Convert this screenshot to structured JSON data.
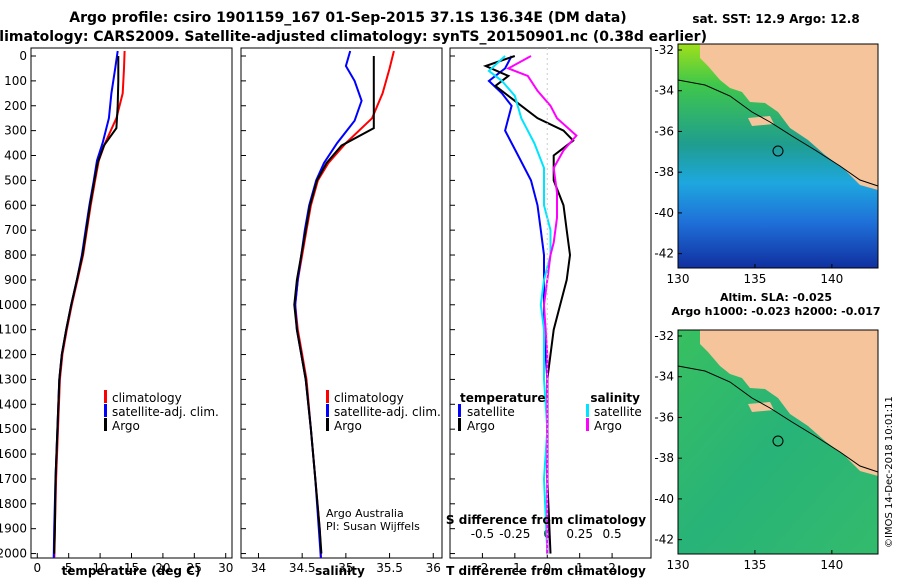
{
  "header": {
    "title_line1": "Argo profile: csiro 1901159_167 01-Sep-2015 37.1S 136.34E (DM data)",
    "title_line2": "Climatology: CARS2009. Satellite-adjusted climatology: synTS_20150901.nc (0.38d earlier)"
  },
  "colors": {
    "climatology": "#ff0000",
    "satellite": "#0000ff",
    "argo": "#000000",
    "sal_satellite": "#00e5ff",
    "sal_argo": "#ff00ff",
    "land": "#f5c49a"
  },
  "chart_data": [
    {
      "type": "line",
      "xlabel": "temperature (deg C)",
      "xlim": [
        -1,
        31
      ],
      "xticks": [
        "0",
        "5",
        "10",
        "15",
        "20",
        "25",
        "30"
      ],
      "ylim": [
        2050,
        0
      ],
      "yticks": [
        "0",
        "100",
        "200",
        "300",
        "400",
        "500",
        "600",
        "700",
        "800",
        "900",
        "1000",
        "1100",
        "1200",
        "1300",
        "1400",
        "1500",
        "1600",
        "1700",
        "1800",
        "1900",
        "2000"
      ],
      "legend": [
        "climatology",
        "satellite-adj. clim.",
        "Argo"
      ],
      "series": [
        {
          "name": "climatology",
          "points": [
            [
              13.9,
              -20
            ],
            [
              13.8,
              50
            ],
            [
              13.6,
              150
            ],
            [
              12.6,
              250
            ],
            [
              10.8,
              350
            ],
            [
              9.8,
              420
            ],
            [
              9.2,
              500
            ],
            [
              8.5,
              600
            ],
            [
              7.9,
              700
            ],
            [
              7.3,
              800
            ],
            [
              6.4,
              900
            ],
            [
              5.5,
              1000
            ],
            [
              4.7,
              1100
            ],
            [
              4.0,
              1200
            ],
            [
              3.6,
              1300
            ],
            [
              3.3,
              1500
            ],
            [
              3.0,
              1700
            ],
            [
              2.8,
              1900
            ],
            [
              2.7,
              2050
            ]
          ]
        },
        {
          "name": "satellite-adj. clim.",
          "points": [
            [
              12.8,
              -20
            ],
            [
              12.4,
              50
            ],
            [
              11.8,
              150
            ],
            [
              11.4,
              250
            ],
            [
              10.4,
              350
            ],
            [
              9.5,
              420
            ],
            [
              9.0,
              500
            ],
            [
              8.3,
              600
            ],
            [
              7.7,
              700
            ],
            [
              7.1,
              800
            ],
            [
              6.3,
              900
            ],
            [
              5.4,
              1000
            ],
            [
              4.6,
              1100
            ],
            [
              3.9,
              1200
            ],
            [
              3.5,
              1300
            ],
            [
              3.2,
              1500
            ],
            [
              2.9,
              1700
            ],
            [
              2.7,
              1900
            ],
            [
              2.6,
              2050
            ]
          ]
        },
        {
          "name": "Argo",
          "points": [
            [
              12.9,
              0
            ],
            [
              12.9,
              100
            ],
            [
              12.8,
              200
            ],
            [
              12.6,
              290
            ],
            [
              10.6,
              360
            ],
            [
              9.6,
              430
            ],
            [
              9.1,
              500
            ],
            [
              8.4,
              600
            ],
            [
              7.8,
              700
            ],
            [
              7.2,
              800
            ],
            [
              6.3,
              900
            ],
            [
              5.4,
              1000
            ],
            [
              4.6,
              1100
            ],
            [
              3.9,
              1200
            ],
            [
              3.5,
              1300
            ],
            [
              3.2,
              1500
            ],
            [
              2.9,
              1700
            ],
            [
              2.8,
              1900
            ],
            [
              2.7,
              2000
            ]
          ]
        }
      ]
    },
    {
      "type": "line",
      "xlabel": "salinity",
      "xlim": [
        33.8,
        36.1
      ],
      "xticks": [
        "34",
        "34.5",
        "35",
        "35.5",
        "36"
      ],
      "ylim": [
        2050,
        0
      ],
      "legend": [
        "climatology",
        "satellite-adj. clim.",
        "Argo"
      ],
      "annotation": [
        "Argo Australia",
        "PI: Susan Wijffels"
      ],
      "series": [
        {
          "name": "climatology",
          "points": [
            [
              35.55,
              -20
            ],
            [
              35.5,
              50
            ],
            [
              35.42,
              150
            ],
            [
              35.3,
              250
            ],
            [
              35.0,
              350
            ],
            [
              34.8,
              430
            ],
            [
              34.68,
              500
            ],
            [
              34.6,
              600
            ],
            [
              34.55,
              700
            ],
            [
              34.5,
              800
            ],
            [
              34.45,
              900
            ],
            [
              34.42,
              1000
            ],
            [
              34.45,
              1100
            ],
            [
              34.5,
              1200
            ],
            [
              34.55,
              1300
            ],
            [
              34.6,
              1500
            ],
            [
              34.65,
              1700
            ],
            [
              34.7,
              1900
            ],
            [
              34.72,
              2050
            ]
          ]
        },
        {
          "name": "satellite-adj. clim.",
          "points": [
            [
              35.05,
              -20
            ],
            [
              35.0,
              40
            ],
            [
              35.1,
              100
            ],
            [
              35.18,
              180
            ],
            [
              35.1,
              260
            ],
            [
              34.9,
              350
            ],
            [
              34.75,
              430
            ],
            [
              34.66,
              500
            ],
            [
              34.58,
              600
            ],
            [
              34.53,
              700
            ],
            [
              34.49,
              800
            ],
            [
              34.45,
              900
            ],
            [
              34.42,
              1000
            ],
            [
              34.44,
              1100
            ],
            [
              34.49,
              1200
            ],
            [
              34.54,
              1300
            ],
            [
              34.6,
              1500
            ],
            [
              34.65,
              1700
            ],
            [
              34.69,
              1900
            ],
            [
              34.72,
              2050
            ]
          ]
        },
        {
          "name": "Argo",
          "points": [
            [
              35.32,
              0
            ],
            [
              35.32,
              100
            ],
            [
              35.32,
              200
            ],
            [
              35.32,
              290
            ],
            [
              34.95,
              360
            ],
            [
              34.78,
              430
            ],
            [
              34.67,
              500
            ],
            [
              34.59,
              600
            ],
            [
              34.54,
              700
            ],
            [
              34.49,
              800
            ],
            [
              34.44,
              900
            ],
            [
              34.41,
              1000
            ],
            [
              34.44,
              1100
            ],
            [
              34.49,
              1200
            ],
            [
              34.54,
              1300
            ],
            [
              34.6,
              1500
            ],
            [
              34.65,
              1700
            ],
            [
              34.7,
              1900
            ],
            [
              34.72,
              2000
            ]
          ]
        }
      ]
    },
    {
      "type": "line",
      "xlabel": "T difference from climatology",
      "xlabel_top": "S difference from climatology",
      "xlim": [
        -3,
        3.2
      ],
      "xticks": [
        "-2",
        "-1",
        "0",
        "1",
        "2"
      ],
      "xticks_top": [
        "-0.5",
        "-0.25",
        "0",
        "0.25",
        "0.5"
      ],
      "ylim": [
        2050,
        0
      ],
      "legend_left": [
        "temperature",
        "satellite",
        "Argo"
      ],
      "legend_right": [
        "salinity",
        "satellite",
        "Argo"
      ],
      "series": [
        {
          "name": "satellite",
          "points": [
            [
              -1.1,
              0
            ],
            [
              -1.3,
              50
            ],
            [
              -1.8,
              100
            ],
            [
              -1.4,
              150
            ],
            [
              -1.1,
              200
            ],
            [
              -1.3,
              300
            ],
            [
              -0.9,
              400
            ],
            [
              -0.5,
              500
            ],
            [
              -0.3,
              600
            ],
            [
              -0.2,
              700
            ],
            [
              -0.1,
              800
            ],
            [
              -0.1,
              900
            ],
            [
              -0.1,
              1000
            ],
            [
              -0.1,
              1100
            ],
            [
              0,
              1300
            ],
            [
              0,
              1500
            ],
            [
              0,
              1700
            ],
            [
              0,
              2000
            ]
          ]
        },
        {
          "name": "Argo",
          "points": [
            [
              -1.0,
              0
            ],
            [
              -1.9,
              40
            ],
            [
              -1.2,
              80
            ],
            [
              -1.6,
              120
            ],
            [
              -1.0,
              180
            ],
            [
              -0.3,
              250
            ],
            [
              0.5,
              300
            ],
            [
              0.8,
              340
            ],
            [
              0.2,
              400
            ],
            [
              0.2,
              500
            ],
            [
              0.5,
              600
            ],
            [
              0.6,
              700
            ],
            [
              0.7,
              800
            ],
            [
              0.6,
              900
            ],
            [
              0.4,
              1000
            ],
            [
              0.2,
              1100
            ],
            [
              0.1,
              1200
            ],
            [
              0,
              1300
            ],
            [
              0,
              1500
            ],
            [
              0,
              1700
            ],
            [
              0.1,
              2000
            ]
          ]
        },
        {
          "name": "salinity satellite",
          "points": [
            [
              -1.3,
              0
            ],
            [
              -1.8,
              60
            ],
            [
              -1.4,
              100
            ],
            [
              -1.0,
              160
            ],
            [
              -0.8,
              250
            ],
            [
              -0.4,
              350
            ],
            [
              -0.1,
              450
            ],
            [
              -0.1,
              600
            ],
            [
              0.1,
              700
            ],
            [
              0.1,
              800
            ],
            [
              -0.1,
              900
            ],
            [
              -0.2,
              1000
            ],
            [
              -0.1,
              1100
            ],
            [
              -0.1,
              1300
            ],
            [
              0,
              1500
            ],
            [
              -0.1,
              1700
            ],
            [
              0,
              2000
            ]
          ]
        },
        {
          "name": "salinity Argo",
          "points": [
            [
              -0.5,
              0
            ],
            [
              -1.2,
              50
            ],
            [
              -0.6,
              80
            ],
            [
              -0.3,
              140
            ],
            [
              0.1,
              200
            ],
            [
              0.3,
              250
            ],
            [
              0.9,
              320
            ],
            [
              0.5,
              380
            ],
            [
              0.2,
              450
            ],
            [
              0.3,
              550
            ],
            [
              0.3,
              650
            ],
            [
              0.2,
              750
            ],
            [
              0.1,
              800
            ],
            [
              0,
              900
            ],
            [
              -0.1,
              1000
            ],
            [
              0,
              1200
            ],
            [
              0,
              1400
            ],
            [
              0,
              1600
            ],
            [
              0,
              2000
            ]
          ]
        }
      ]
    },
    {
      "type": "heatmap",
      "title": "sat. SST: 12.9 Argo: 12.8",
      "xlim": [
        130,
        143
      ],
      "xticks": [
        "130",
        "135",
        "140"
      ],
      "ylim": [
        -43,
        -32
      ],
      "yticks": [
        "-32",
        "-34",
        "-36",
        "-38",
        "-40",
        "-42"
      ],
      "argo_location": [
        136.34,
        -37.1
      ]
    },
    {
      "type": "heatmap",
      "title_line1": "Altim. SLA: -0.025",
      "title_line2": "Argo h1000: -0.023 h2000: -0.017",
      "xlim": [
        130,
        143
      ],
      "xticks": [
        "130",
        "135",
        "140"
      ],
      "ylim": [
        -43,
        -32
      ],
      "yticks": [
        "-32",
        "-34",
        "-36",
        "-38",
        "-40",
        "-42"
      ],
      "argo_location": [
        136.34,
        -37.1
      ],
      "credit": "©IMOS 14-Dec-2018 10:01:11"
    }
  ]
}
